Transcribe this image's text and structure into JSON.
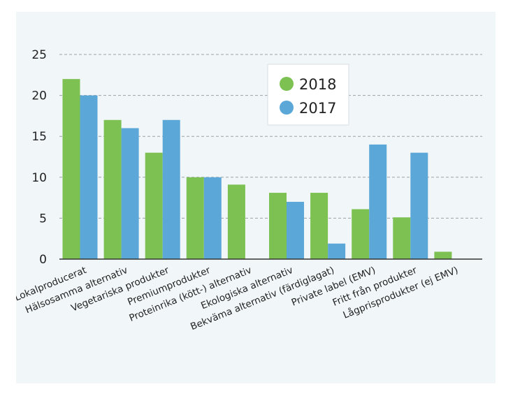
{
  "chart_data": {
    "type": "bar",
    "categories": [
      "Lokalproducerat",
      "Hälsosamma alternativ",
      "Vegetariska produkter",
      "Premiumprodukter",
      "Proteinrika (kött-) alternativ",
      "Ekologiska alternativ",
      "Bekväma alternativ (färdiglagat)",
      "Private label (EMV)",
      "Fritt från produkter",
      "Lågprisprodukter (ej EMV)"
    ],
    "series": [
      {
        "name": "2018",
        "color": "#7cc151",
        "values": [
          22,
          17,
          13,
          10,
          9.1,
          8.1,
          8.1,
          6.1,
          5.1,
          0.9
        ]
      },
      {
        "name": "2017",
        "color": "#5ba7d8",
        "values": [
          20,
          16,
          17,
          10,
          null,
          7,
          1.9,
          14,
          13,
          null
        ]
      }
    ],
    "y_ticks": [
      0,
      5,
      10,
      15,
      20,
      25
    ],
    "ylim": [
      0,
      25
    ],
    "grid": true,
    "legend_position": "top-center",
    "title": "",
    "xlabel": "",
    "ylabel": ""
  }
}
